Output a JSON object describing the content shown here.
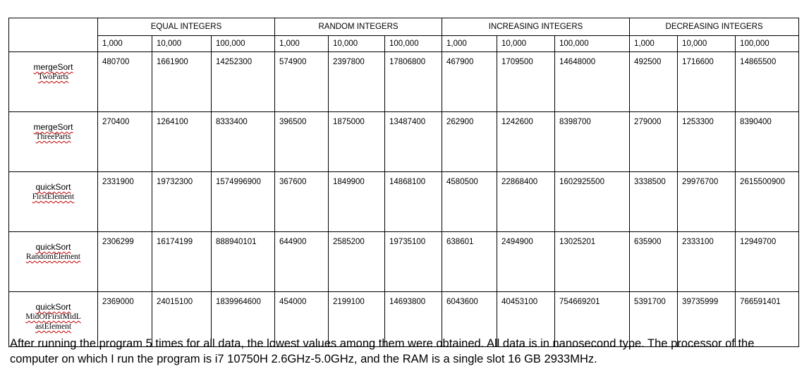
{
  "groups": [
    "EQUAL INTEGERS",
    "RANDOM INTEGERS",
    "INCREASING INTEGERS",
    "DECREASING INTEGERS"
  ],
  "sizes": [
    "1,000",
    "10,000",
    "100,000"
  ],
  "rows": [
    {
      "name1": "mergeSort",
      "name2": "TwoParts",
      "values": [
        "480700",
        "1661900",
        "14252300",
        "574900",
        "2397800",
        "17806800",
        "467900",
        "1709500",
        "14648000",
        "492500",
        "1716600",
        "14865500"
      ]
    },
    {
      "name1": "mergeSort",
      "name2": "ThreeParts",
      "values": [
        "270400",
        "1264100",
        "8333400",
        "396500",
        "1875000",
        "13487400",
        "262900",
        "1242600",
        "8398700",
        "279000",
        "1253300",
        "8390400"
      ]
    },
    {
      "name1": "quickSort",
      "name2": "FirstElement",
      "values": [
        "2331900",
        "19732300",
        "1574996900",
        "367600",
        "1849900",
        "14868100",
        "4580500",
        "22868400",
        "1602925500",
        "3338500",
        "29976700",
        "2615500900"
      ]
    },
    {
      "name1": "quickSort",
      "name2": "RandomElement",
      "values": [
        "2306299",
        "16174199",
        "888940101",
        "644900",
        "2585200",
        "19735100",
        "638601",
        "2494900",
        "13025201",
        "635900",
        "2333100",
        "12949700"
      ]
    },
    {
      "name1": "quickSort",
      "name2": "MidOfFirstMidL",
      "name3": "astElement",
      "values": [
        "2369000",
        "24015100",
        "1839964600",
        "454000",
        "2199100",
        "14693800",
        "6043600",
        "40453100",
        "754669201",
        "5391700",
        "39735999",
        "766591401"
      ]
    }
  ],
  "note": "After running the program 5 times for all data, the lowest values among them were obtained. All data is in nanosecond type. The processor of the computer on which I run the program is i7 10750H 2.6GHz-5.0GHz, and the RAM is a single slot 16 GB 2933MHz."
}
